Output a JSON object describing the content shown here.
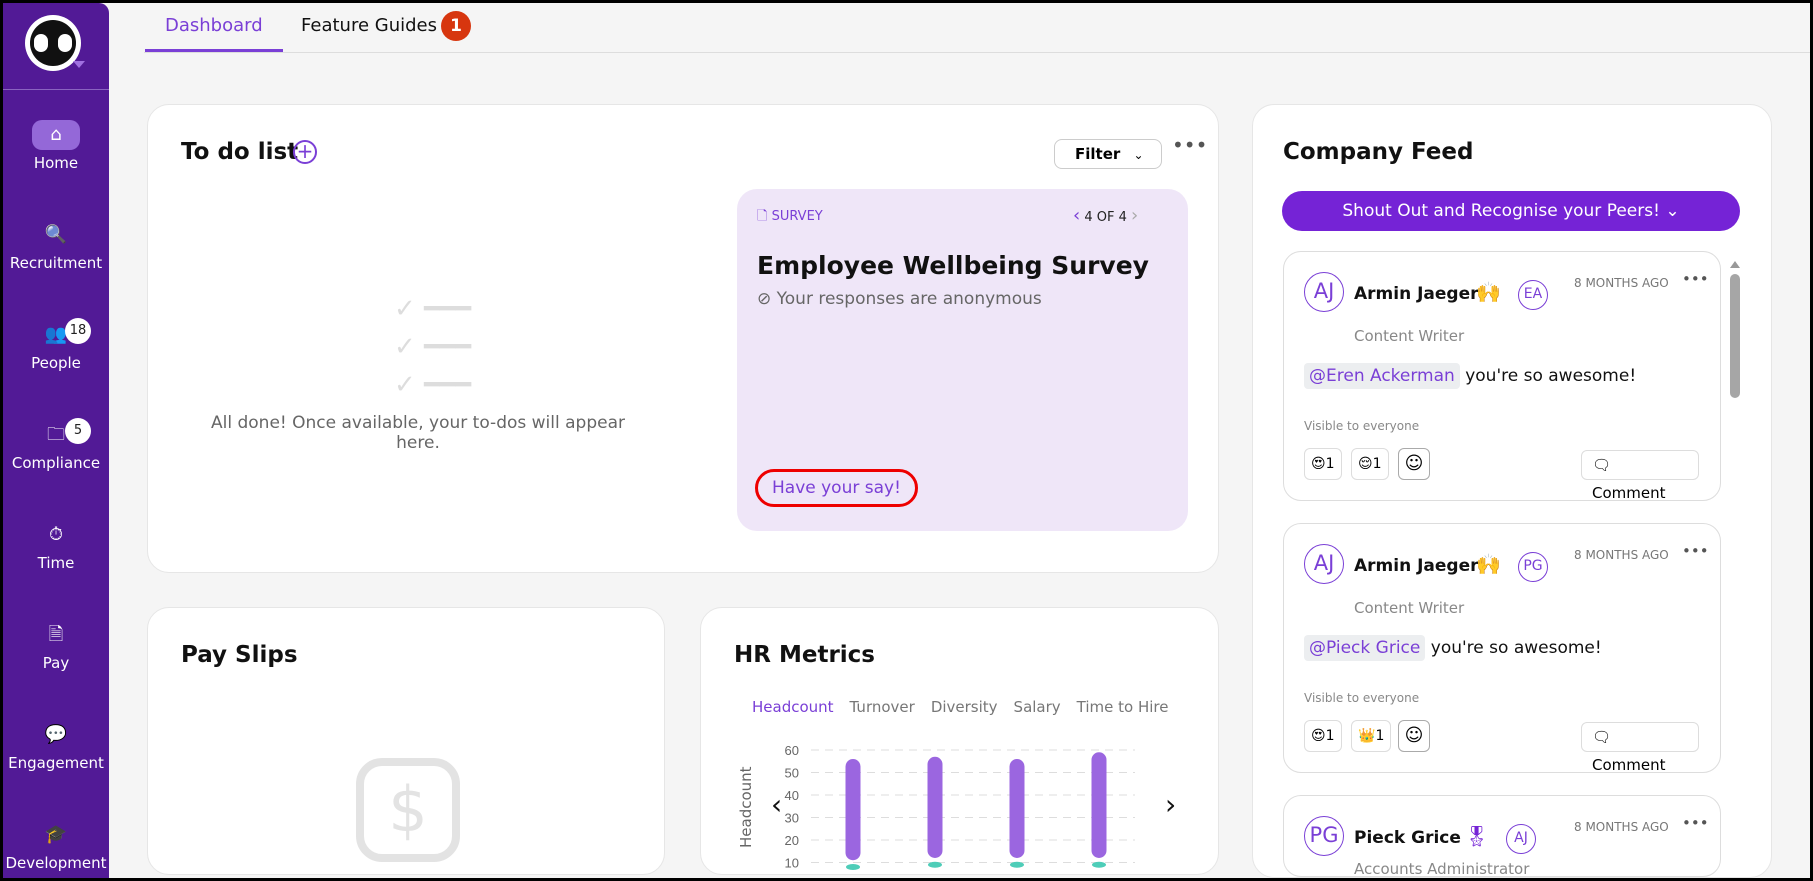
{
  "sidebar": {
    "items": [
      {
        "label": "Home",
        "icon": "home-icon",
        "active": true
      },
      {
        "label": "Recruitment",
        "icon": "recruitment-icon"
      },
      {
        "label": "People",
        "icon": "people-icon",
        "badge": "18"
      },
      {
        "label": "Compliance",
        "icon": "folder-icon",
        "badge": "5"
      },
      {
        "label": "Time",
        "icon": "stopwatch-icon"
      },
      {
        "label": "Pay",
        "icon": "pay-icon"
      },
      {
        "label": "Engagement",
        "icon": "chat-icon"
      },
      {
        "label": "Development",
        "icon": "graduation-cap-icon"
      }
    ]
  },
  "tabs": [
    {
      "label": "Dashboard",
      "active": true
    },
    {
      "label": "Feature Guides",
      "badge": "1"
    }
  ],
  "todo": {
    "title": "To do list",
    "filter_label": "Filter",
    "empty_text": "All done! Once available, your to-dos will appear here.",
    "survey": {
      "type": "SURVEY",
      "pager": "4 OF 4",
      "title": "Employee Wellbeing Survey",
      "note": "Your responses are anonymous",
      "cta": "Have your say!"
    }
  },
  "payslips": {
    "title": "Pay Slips"
  },
  "hr": {
    "title": "HR Metrics",
    "tabs": [
      "Headcount",
      "Turnover",
      "Diversity",
      "Salary",
      "Time to Hire"
    ],
    "active_tab": "Headcount"
  },
  "chart_data": {
    "type": "bar",
    "ylabel": "Headcount",
    "ylim": [
      0,
      60
    ],
    "yticks": [
      "10",
      "20",
      "30",
      "40",
      "50",
      "60"
    ],
    "grid": true,
    "series": [
      {
        "values_low": [
          11,
          12,
          12,
          12
        ],
        "values_high": [
          56,
          57,
          56,
          59
        ],
        "color": "#9b66e0"
      },
      {
        "values": [
          8,
          9,
          9,
          9
        ],
        "color": "#4ecdb8"
      }
    ]
  },
  "feed": {
    "title": "Company Feed",
    "shoutout": "Shout Out and Recognise your Peers!",
    "posts": [
      {
        "initials": "AJ",
        "name": "Armin Jaeger",
        "emoji": "🙌",
        "to": "EA",
        "time": "8 MONTHS AGO",
        "role": "Content Writer",
        "mention": "@Eren Ackerman",
        "text": "you're so awesome!",
        "visibility": "Visible to everyone",
        "reactions": [
          {
            "emoji": "😍",
            "count": "1"
          },
          {
            "emoji": "😌",
            "count": "1"
          }
        ],
        "comment": "Comment"
      },
      {
        "initials": "AJ",
        "name": "Armin Jaeger",
        "emoji": "🙌",
        "to": "PG",
        "time": "8 MONTHS AGO",
        "role": "Content Writer",
        "mention": "@Pieck Grice",
        "text": "you're so awesome!",
        "visibility": "Visible to everyone",
        "reactions": [
          {
            "emoji": "😍",
            "count": "1"
          },
          {
            "emoji": "👑",
            "count": "1"
          }
        ],
        "comment": "Comment"
      },
      {
        "initials": "PG",
        "name": "Pieck Grice",
        "emoji": "🎖",
        "to": "AJ",
        "time": "8 MONTHS AGO",
        "role": "Accounts Administrator"
      }
    ]
  },
  "colors": {
    "brand": "#521a96",
    "accent": "#7a3fd6",
    "badge": "#d7360f"
  }
}
